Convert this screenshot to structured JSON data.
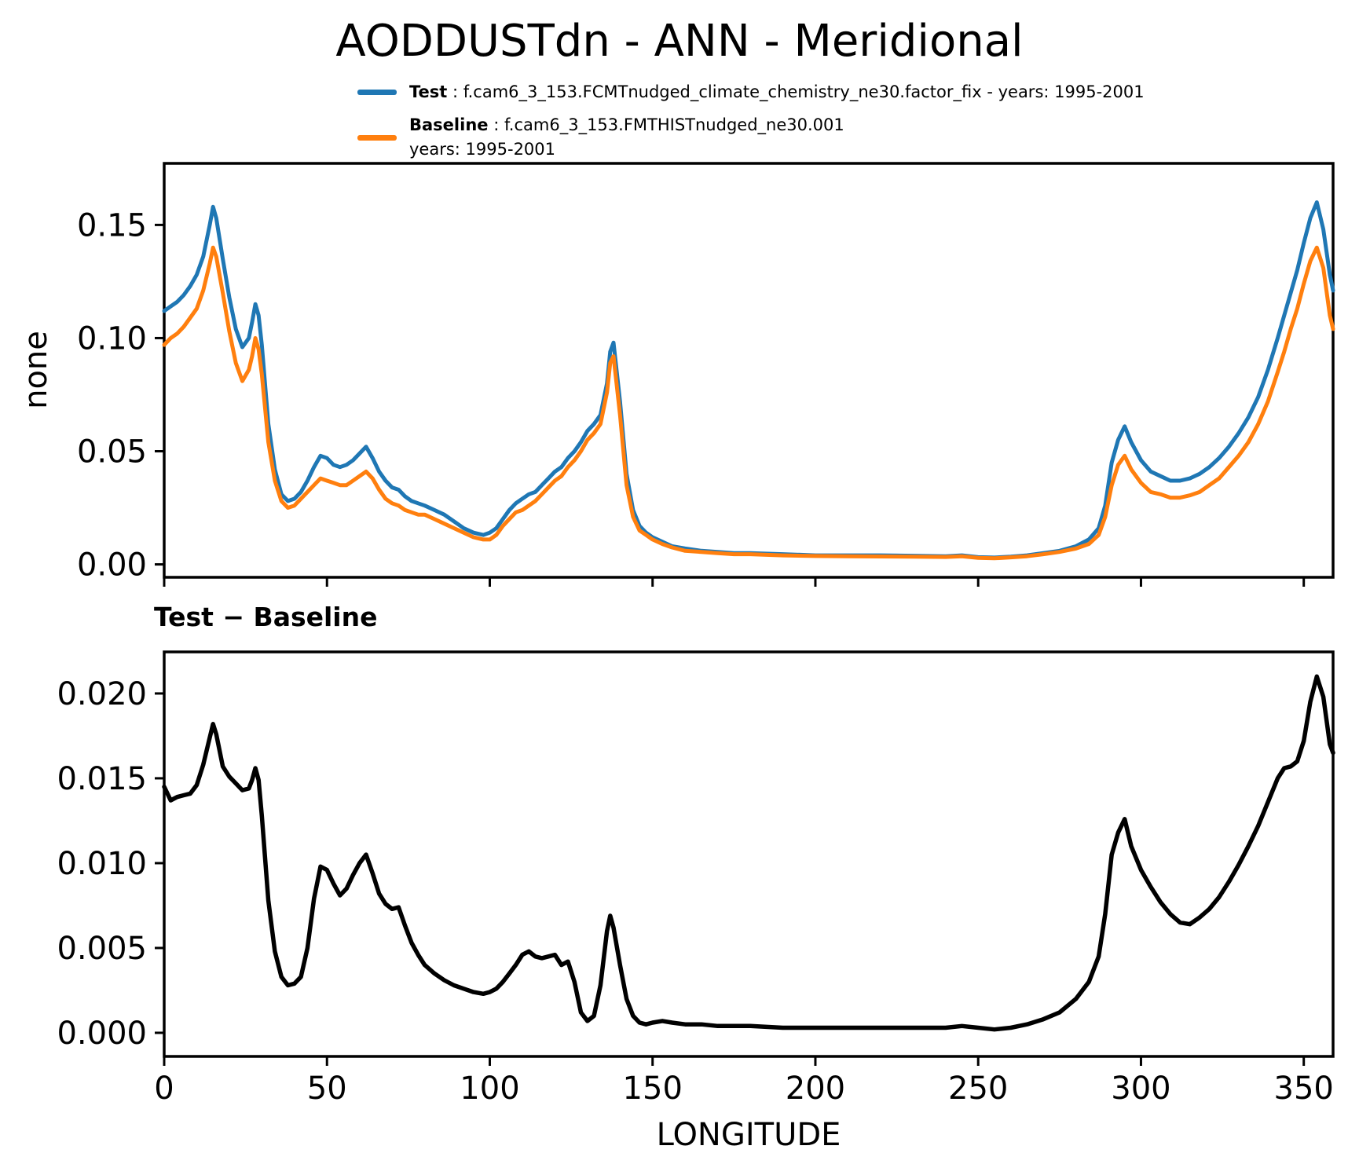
{
  "title": "AODDUSTdn - ANN - Meridional",
  "legend": {
    "entries": [
      {
        "key": "Test",
        "rest": " : f.cam6_3_153.FCMTnudged_climate_chemistry_ne30.factor_fix - years: 1995-2001",
        "color": "#1f77b4"
      },
      {
        "key": "Baseline",
        "rest": " : f.cam6_3_153.FMTHISTnudged_ne30.001",
        "line2": "years: 1995-2001",
        "color": "#ff7f0e"
      }
    ]
  },
  "colors": {
    "test": "#1f77b4",
    "baseline": "#ff7f0e",
    "difference": "#000000",
    "axis": "#000000",
    "background": "#ffffff"
  },
  "chart_data": [
    {
      "type": "line",
      "title": "",
      "ylabel": "none",
      "xlabel": "",
      "grid": false,
      "legend_position": "above axes, upper center",
      "xlim": [
        0,
        359
      ],
      "ylim": [
        -0.0057,
        0.1772
      ],
      "yticks": [
        0.0,
        0.05,
        0.1,
        0.15
      ],
      "ytick_labels": [
        "0.00",
        "0.05",
        "0.10",
        "0.15"
      ],
      "xticks": [
        0,
        50,
        100,
        150,
        200,
        250,
        300,
        350
      ],
      "xtick_labels": null,
      "x": [
        0,
        2,
        4,
        6,
        8,
        10,
        12,
        14,
        15,
        16,
        18,
        20,
        22,
        24,
        26,
        27,
        28,
        29,
        30,
        32,
        34,
        36,
        38,
        40,
        42,
        44,
        46,
        48,
        50,
        52,
        54,
        56,
        58,
        60,
        62,
        64,
        66,
        68,
        70,
        72,
        74,
        76,
        78,
        80,
        83,
        86,
        89,
        92,
        95,
        98,
        100,
        102,
        104,
        106,
        108,
        110,
        112,
        114,
        116,
        118,
        120,
        122,
        124,
        126,
        128,
        130,
        132,
        134,
        136,
        137,
        138,
        140,
        142,
        144,
        146,
        148,
        150,
        153,
        156,
        160,
        165,
        170,
        175,
        180,
        190,
        200,
        210,
        220,
        230,
        240,
        245,
        250,
        255,
        260,
        265,
        270,
        275,
        280,
        284,
        287,
        289,
        291,
        293,
        295,
        297,
        300,
        303,
        306,
        309,
        312,
        315,
        318,
        321,
        324,
        327,
        330,
        333,
        336,
        339,
        342,
        344,
        346,
        348,
        350,
        352,
        354,
        356,
        358,
        359
      ],
      "series": [
        {
          "name": "Test",
          "label": "f.cam6_3_153.FCMTnudged_climate_chemistry_ne30.factor_fix - years: 1995-2001",
          "color": "#1f77b4",
          "linewidth": 5,
          "values": [
            0.112,
            0.114,
            0.116,
            0.119,
            0.123,
            0.128,
            0.136,
            0.15,
            0.158,
            0.153,
            0.135,
            0.118,
            0.104,
            0.096,
            0.1,
            0.107,
            0.115,
            0.11,
            0.097,
            0.062,
            0.042,
            0.031,
            0.028,
            0.029,
            0.032,
            0.037,
            0.043,
            0.048,
            0.047,
            0.044,
            0.043,
            0.044,
            0.046,
            0.049,
            0.052,
            0.047,
            0.041,
            0.037,
            0.034,
            0.033,
            0.03,
            0.028,
            0.027,
            0.026,
            0.024,
            0.022,
            0.019,
            0.016,
            0.014,
            0.013,
            0.014,
            0.016,
            0.02,
            0.024,
            0.027,
            0.029,
            0.031,
            0.032,
            0.035,
            0.038,
            0.041,
            0.043,
            0.047,
            0.05,
            0.054,
            0.059,
            0.062,
            0.066,
            0.08,
            0.094,
            0.098,
            0.072,
            0.04,
            0.024,
            0.017,
            0.014,
            0.012,
            0.01,
            0.008,
            0.007,
            0.006,
            0.0055,
            0.005,
            0.005,
            0.0045,
            0.004,
            0.004,
            0.004,
            0.0038,
            0.0036,
            0.004,
            0.0032,
            0.003,
            0.0034,
            0.004,
            0.005,
            0.006,
            0.008,
            0.011,
            0.016,
            0.026,
            0.045,
            0.055,
            0.061,
            0.054,
            0.046,
            0.041,
            0.039,
            0.037,
            0.037,
            0.038,
            0.04,
            0.043,
            0.047,
            0.052,
            0.058,
            0.065,
            0.074,
            0.086,
            0.1,
            0.11,
            0.12,
            0.13,
            0.142,
            0.153,
            0.16,
            0.148,
            0.128,
            0.121
          ]
        },
        {
          "name": "Baseline",
          "label": "f.cam6_3_153.FMTHISTnudged_ne30.001 years: 1995-2001",
          "color": "#ff7f0e",
          "linewidth": 5,
          "values": [
            0.097,
            0.1,
            0.102,
            0.105,
            0.109,
            0.113,
            0.121,
            0.133,
            0.14,
            0.136,
            0.12,
            0.103,
            0.089,
            0.081,
            0.086,
            0.092,
            0.1,
            0.095,
            0.084,
            0.054,
            0.037,
            0.028,
            0.025,
            0.026,
            0.029,
            0.032,
            0.035,
            0.038,
            0.037,
            0.036,
            0.035,
            0.035,
            0.037,
            0.039,
            0.041,
            0.038,
            0.033,
            0.029,
            0.027,
            0.026,
            0.024,
            0.023,
            0.022,
            0.022,
            0.02,
            0.018,
            0.016,
            0.014,
            0.012,
            0.011,
            0.011,
            0.013,
            0.017,
            0.02,
            0.023,
            0.024,
            0.026,
            0.028,
            0.031,
            0.034,
            0.037,
            0.039,
            0.043,
            0.046,
            0.05,
            0.055,
            0.058,
            0.062,
            0.076,
            0.089,
            0.092,
            0.066,
            0.035,
            0.021,
            0.015,
            0.013,
            0.011,
            0.009,
            0.0075,
            0.006,
            0.0055,
            0.005,
            0.0045,
            0.0045,
            0.004,
            0.0037,
            0.0036,
            0.0035,
            0.0034,
            0.0033,
            0.0036,
            0.0029,
            0.0027,
            0.0031,
            0.0036,
            0.0045,
            0.0055,
            0.007,
            0.009,
            0.013,
            0.021,
            0.035,
            0.044,
            0.048,
            0.042,
            0.036,
            0.032,
            0.031,
            0.0295,
            0.0295,
            0.0305,
            0.032,
            0.035,
            0.038,
            0.043,
            0.048,
            0.054,
            0.062,
            0.072,
            0.085,
            0.094,
            0.104,
            0.113,
            0.124,
            0.134,
            0.14,
            0.131,
            0.11,
            0.104
          ]
        }
      ]
    },
    {
      "type": "line",
      "title": "Test − Baseline",
      "ylabel": "",
      "xlabel": "LONGITUDE",
      "grid": false,
      "xlim": [
        0,
        359
      ],
      "ylim": [
        -0.00139,
        0.02245
      ],
      "yticks": [
        0.0,
        0.005,
        0.01,
        0.015,
        0.02
      ],
      "ytick_labels": [
        "0.000",
        "0.005",
        "0.010",
        "0.015",
        "0.020"
      ],
      "xticks": [
        0,
        50,
        100,
        150,
        200,
        250,
        300,
        350
      ],
      "xtick_labels": [
        "0",
        "50",
        "100",
        "150",
        "200",
        "250",
        "300",
        "350"
      ],
      "x": [
        0,
        2,
        4,
        6,
        8,
        10,
        12,
        14,
        15,
        16,
        18,
        20,
        22,
        24,
        26,
        27,
        28,
        29,
        30,
        32,
        34,
        36,
        38,
        40,
        42,
        44,
        46,
        48,
        50,
        52,
        54,
        56,
        58,
        60,
        62,
        64,
        66,
        68,
        70,
        72,
        74,
        76,
        78,
        80,
        83,
        86,
        89,
        92,
        95,
        98,
        100,
        102,
        104,
        106,
        108,
        110,
        112,
        114,
        116,
        118,
        120,
        122,
        124,
        126,
        128,
        130,
        132,
        134,
        136,
        137,
        138,
        140,
        142,
        144,
        146,
        148,
        150,
        153,
        156,
        160,
        165,
        170,
        175,
        180,
        190,
        200,
        210,
        220,
        230,
        240,
        245,
        250,
        255,
        260,
        265,
        270,
        275,
        280,
        284,
        287,
        289,
        291,
        293,
        295,
        297,
        300,
        303,
        306,
        309,
        312,
        315,
        318,
        321,
        324,
        327,
        330,
        333,
        336,
        339,
        342,
        344,
        346,
        348,
        350,
        352,
        354,
        356,
        358,
        359
      ],
      "series": [
        {
          "name": "Test − Baseline",
          "label": "Test minus Baseline difference",
          "color": "#000000",
          "linewidth": 5.5,
          "values": [
            0.0145,
            0.0137,
            0.0139,
            0.014,
            0.0141,
            0.0146,
            0.0158,
            0.0174,
            0.0182,
            0.0176,
            0.0157,
            0.0151,
            0.0147,
            0.0143,
            0.0144,
            0.0149,
            0.0156,
            0.0149,
            0.0128,
            0.0078,
            0.0048,
            0.0033,
            0.0028,
            0.0029,
            0.0033,
            0.005,
            0.0079,
            0.0098,
            0.0096,
            0.0088,
            0.0081,
            0.0085,
            0.0093,
            0.01,
            0.0105,
            0.0094,
            0.0082,
            0.0076,
            0.0073,
            0.0074,
            0.0063,
            0.0053,
            0.0046,
            0.004,
            0.0035,
            0.0031,
            0.0028,
            0.0026,
            0.0024,
            0.0023,
            0.0024,
            0.0026,
            0.003,
            0.0035,
            0.004,
            0.0046,
            0.0048,
            0.0045,
            0.0044,
            0.0045,
            0.0046,
            0.004,
            0.0042,
            0.003,
            0.0012,
            0.0007,
            0.001,
            0.0028,
            0.006,
            0.0069,
            0.0062,
            0.004,
            0.002,
            0.001,
            0.0006,
            0.0005,
            0.0006,
            0.0007,
            0.0006,
            0.0005,
            0.0005,
            0.0004,
            0.0004,
            0.0004,
            0.0003,
            0.0003,
            0.0003,
            0.0003,
            0.0003,
            0.0003,
            0.0004,
            0.0003,
            0.0002,
            0.0003,
            0.0005,
            0.0008,
            0.0012,
            0.002,
            0.003,
            0.0045,
            0.007,
            0.0105,
            0.0118,
            0.0126,
            0.011,
            0.0096,
            0.0086,
            0.0077,
            0.007,
            0.0065,
            0.0064,
            0.0068,
            0.0073,
            0.008,
            0.0089,
            0.0099,
            0.011,
            0.0122,
            0.0136,
            0.015,
            0.0156,
            0.0157,
            0.016,
            0.0172,
            0.0195,
            0.021,
            0.0198,
            0.017,
            0.0165
          ]
        }
      ]
    }
  ]
}
